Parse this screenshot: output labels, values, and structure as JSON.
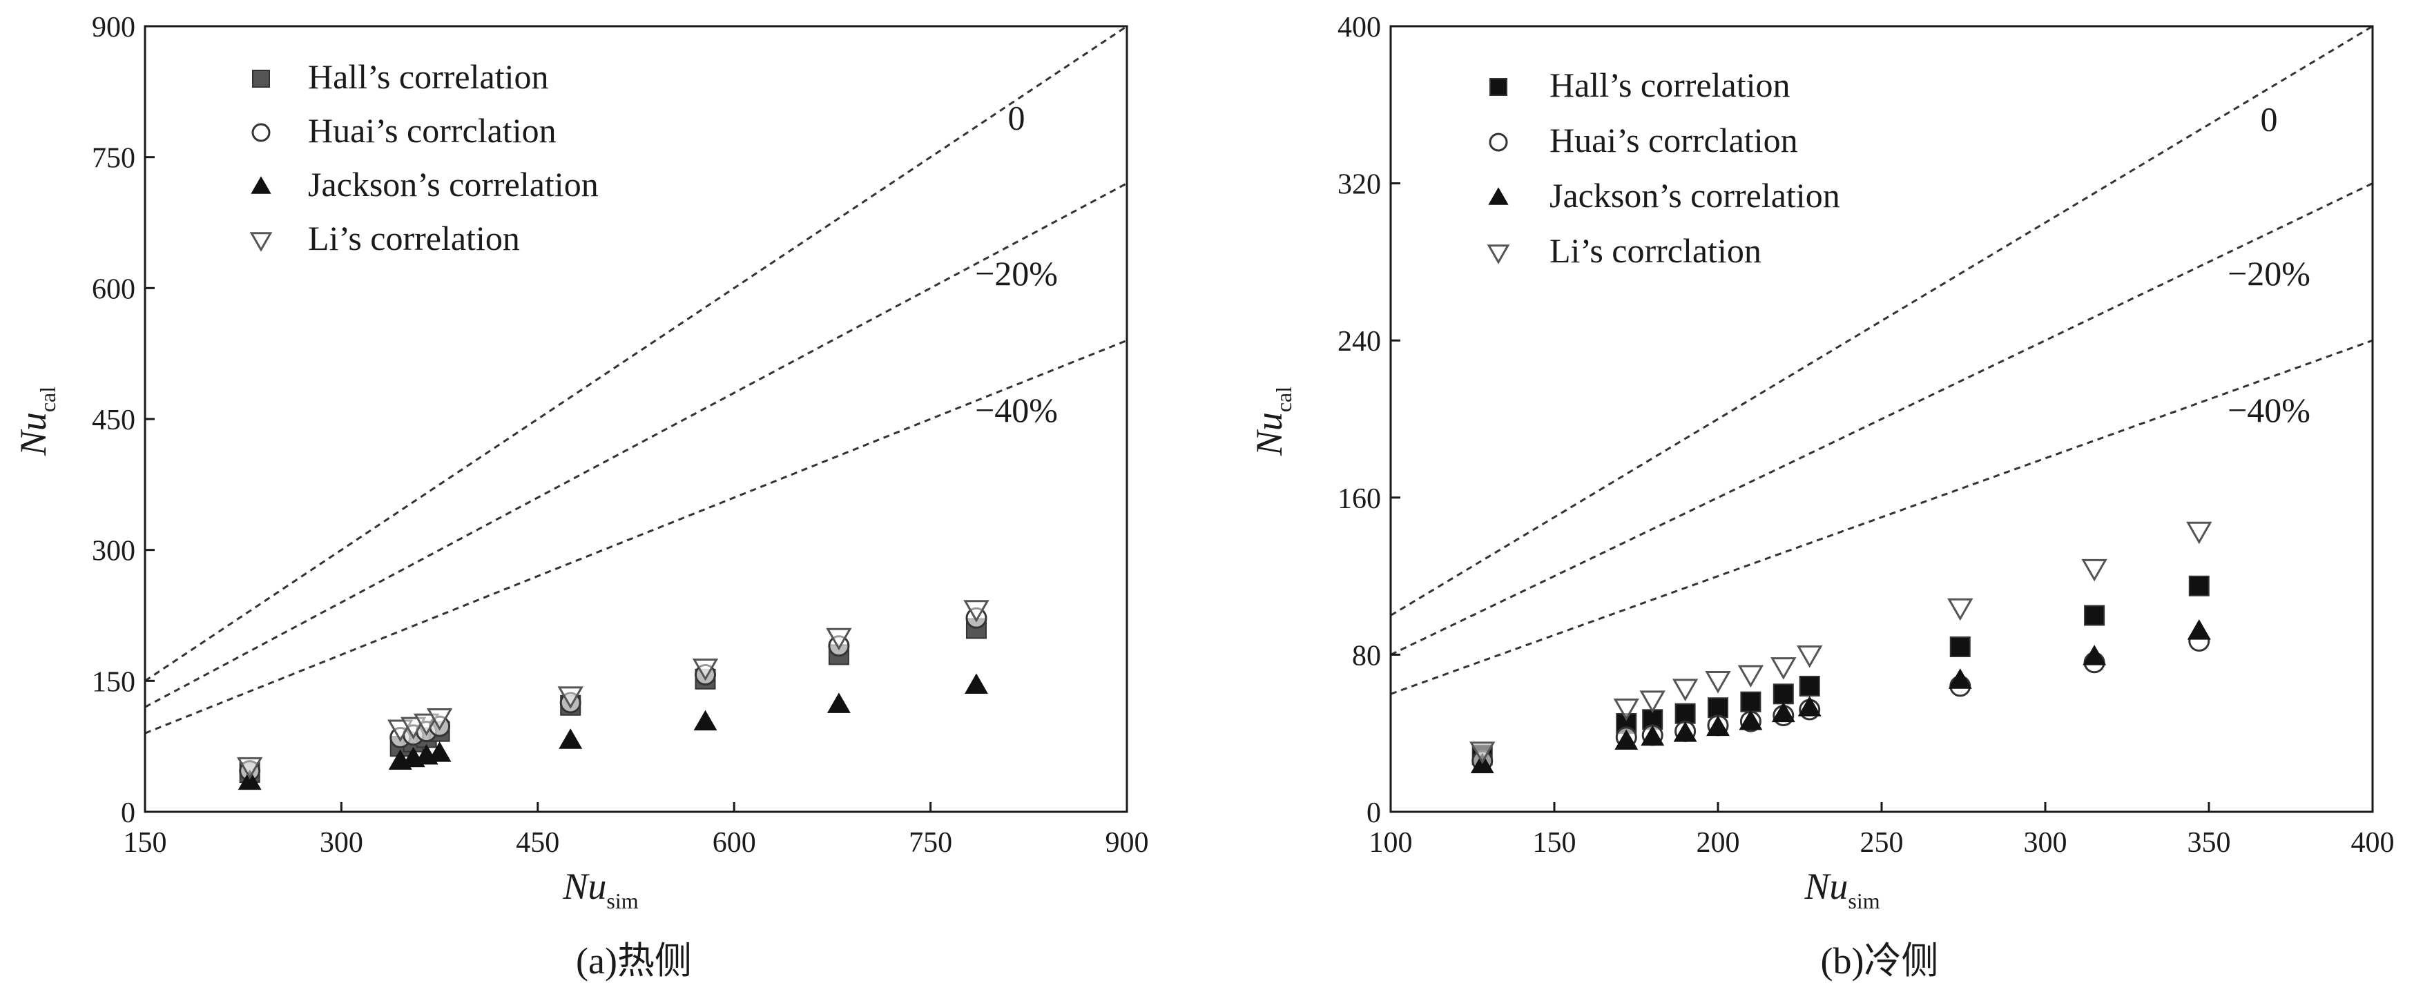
{
  "chart_data": [
    {
      "type": "scatter",
      "caption": "(a)热侧",
      "xlabel": {
        "main": "Nu",
        "sub": "sim"
      },
      "ylabel": {
        "main": "Nu",
        "sub": "cal"
      },
      "xlim": [
        150,
        900
      ],
      "ylim": [
        0,
        900
      ],
      "xticks": [
        150,
        300,
        450,
        600,
        750,
        900
      ],
      "yticks": [
        0,
        150,
        300,
        450,
        600,
        750,
        900
      ],
      "legend_position": "top-left",
      "reference_lines": [
        {
          "label": "0",
          "factor": 1.0
        },
        {
          "label": "−20%",
          "factor": 0.8
        },
        {
          "label": "−40%",
          "factor": 0.6
        }
      ],
      "series": [
        {
          "name": "Hall’s correlation",
          "marker": "square-gray",
          "x": [
            230,
            345,
            355,
            365,
            375,
            475,
            578,
            680,
            785
          ],
          "y": [
            45,
            75,
            80,
            85,
            92,
            122,
            152,
            180,
            210
          ]
        },
        {
          "name": "Huai’s corrclation",
          "marker": "circle-open",
          "x": [
            230,
            345,
            355,
            365,
            375,
            475,
            578,
            680,
            785
          ],
          "y": [
            47,
            85,
            88,
            92,
            98,
            125,
            157,
            190,
            222
          ]
        },
        {
          "name": "Jackson’s correlation",
          "marker": "triangle-filled",
          "x": [
            230,
            345,
            355,
            365,
            375,
            475,
            578,
            680,
            785
          ],
          "y": [
            35,
            58,
            61,
            64,
            67,
            82,
            103,
            123,
            145
          ]
        },
        {
          "name": "Li’s correlation",
          "marker": "triangle-down-open",
          "x": [
            230,
            345,
            355,
            365,
            375,
            475,
            578,
            680,
            785
          ],
          "y": [
            52,
            95,
            98,
            102,
            108,
            133,
            165,
            200,
            232
          ]
        }
      ]
    },
    {
      "type": "scatter",
      "caption": "(b)冷侧",
      "xlabel": {
        "main": "Nu",
        "sub": "sim"
      },
      "ylabel": {
        "main": "Nu",
        "sub": "cal"
      },
      "xlim": [
        100,
        400
      ],
      "ylim": [
        0,
        400
      ],
      "xticks": [
        100,
        150,
        200,
        250,
        300,
        350,
        400
      ],
      "yticks": [
        0,
        80,
        160,
        240,
        320,
        400
      ],
      "legend_position": "top-left",
      "reference_lines": [
        {
          "label": "0",
          "factor": 1.0
        },
        {
          "label": "−20%",
          "factor": 0.8
        },
        {
          "label": "−40%",
          "factor": 0.6
        }
      ],
      "series": [
        {
          "name": "Hall’s correlation",
          "marker": "square-filled",
          "x": [
            128,
            172,
            180,
            190,
            200,
            210,
            220,
            228,
            274,
            315,
            347
          ],
          "y": [
            29,
            45,
            47,
            50,
            53,
            56,
            60,
            64,
            84,
            100,
            115
          ]
        },
        {
          "name": "Huai’s corrclation",
          "marker": "circle-open",
          "x": [
            128,
            172,
            180,
            190,
            200,
            210,
            220,
            228,
            274,
            315,
            347
          ],
          "y": [
            26,
            38,
            39,
            41,
            44,
            46,
            49,
            52,
            64,
            76,
            87
          ]
        },
        {
          "name": "Jackson’s correlation",
          "marker": "triangle-filled",
          "x": [
            128,
            172,
            180,
            190,
            200,
            210,
            220,
            228,
            274,
            315,
            347
          ],
          "y": [
            24,
            36,
            38,
            40,
            43,
            46,
            50,
            53,
            67,
            79,
            92
          ]
        },
        {
          "name": "Li’s corrclation",
          "marker": "triangle-down-open",
          "x": [
            128,
            172,
            180,
            190,
            200,
            210,
            220,
            228,
            274,
            315,
            347
          ],
          "y": [
            31,
            53,
            57,
            63,
            67,
            70,
            74,
            80,
            104,
            124,
            143
          ]
        }
      ]
    }
  ]
}
